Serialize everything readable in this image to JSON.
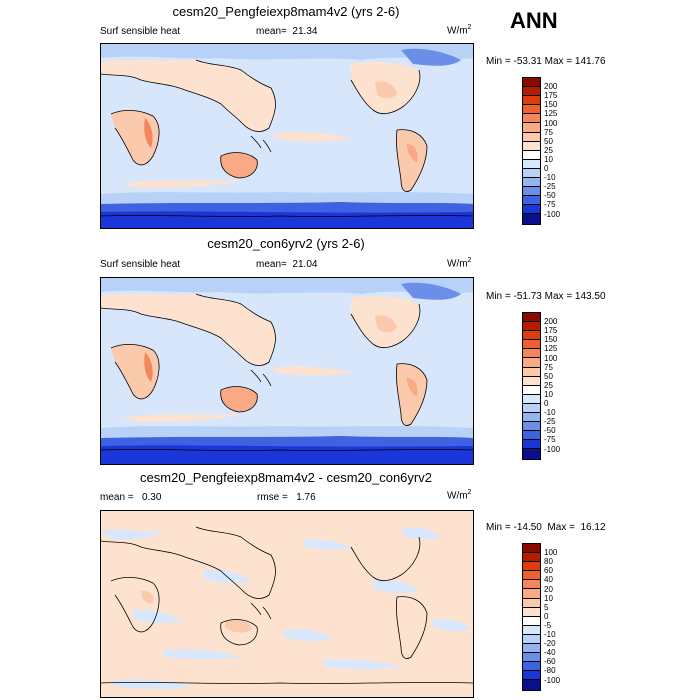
{
  "season": "ANN",
  "panels": [
    {
      "title": "cesm20_Pengfeiexp8mam4v2 (yrs 2-6)",
      "left_label": "Surf sensible heat",
      "mean_label": "mean=",
      "mean_value": "21.34",
      "units": "W/m",
      "units_exp": "2",
      "minmax": "Min = -53.31 Max = 141.76",
      "map_background": "#d7e6fb",
      "colorbar": {
        "labels": [
          "200",
          "175",
          "150",
          "125",
          "100",
          "75",
          "50",
          "25",
          "10",
          "0",
          "-10",
          "-25",
          "-50",
          "-75",
          "-100"
        ],
        "colors": [
          "#8b0a00",
          "#b81c00",
          "#dc3d0a",
          "#ef6030",
          "#f5855c",
          "#f9a983",
          "#fbc9ab",
          "#fde3cf",
          "#ffffff",
          "#d8e7fb",
          "#b8d2f7",
          "#93b4ef",
          "#6b8fe8",
          "#3f62e0",
          "#1a35d8",
          "#0a0f8a"
        ]
      }
    },
    {
      "title": "cesm20_con6yrv2 (yrs 2-6)",
      "left_label": "Surf sensible heat",
      "mean_label": "mean=",
      "mean_value": "21.04",
      "units": "W/m",
      "units_exp": "2",
      "minmax": "Min = -51.73 Max = 143.50",
      "map_background": "#d7e6fb",
      "colorbar": {
        "labels": [
          "200",
          "175",
          "150",
          "125",
          "100",
          "75",
          "50",
          "25",
          "10",
          "0",
          "-10",
          "-25",
          "-50",
          "-75",
          "-100"
        ],
        "colors": [
          "#8b0a00",
          "#b81c00",
          "#dc3d0a",
          "#ef6030",
          "#f5855c",
          "#f9a983",
          "#fbc9ab",
          "#fde3cf",
          "#ffffff",
          "#d8e7fb",
          "#b8d2f7",
          "#93b4ef",
          "#6b8fe8",
          "#3f62e0",
          "#1a35d8",
          "#0a0f8a"
        ]
      }
    },
    {
      "title": "cesm20_Pengfeiexp8mam4v2 - cesm20_con6yrv2",
      "left_label": "mean =   0.30",
      "mean_label": "rmse =",
      "mean_value": "1.76",
      "units": "W/m",
      "units_exp": "2",
      "minmax": "Min = -14.50  Max =  16.12",
      "map_background": "#fde3cf",
      "colorbar": {
        "labels": [
          "100",
          "80",
          "60",
          "40",
          "20",
          "10",
          "5",
          "0",
          "-5",
          "-10",
          "-20",
          "-40",
          "-60",
          "-80",
          "-100"
        ],
        "colors": [
          "#8b0a00",
          "#b81c00",
          "#dc3d0a",
          "#ef6030",
          "#f5855c",
          "#f9a983",
          "#fbc9ab",
          "#fde3cf",
          "#ffffff",
          "#d8e7fb",
          "#b8d2f7",
          "#93b4ef",
          "#6b8fe8",
          "#3f62e0",
          "#1a35d8",
          "#0a0f8a"
        ]
      }
    }
  ]
}
